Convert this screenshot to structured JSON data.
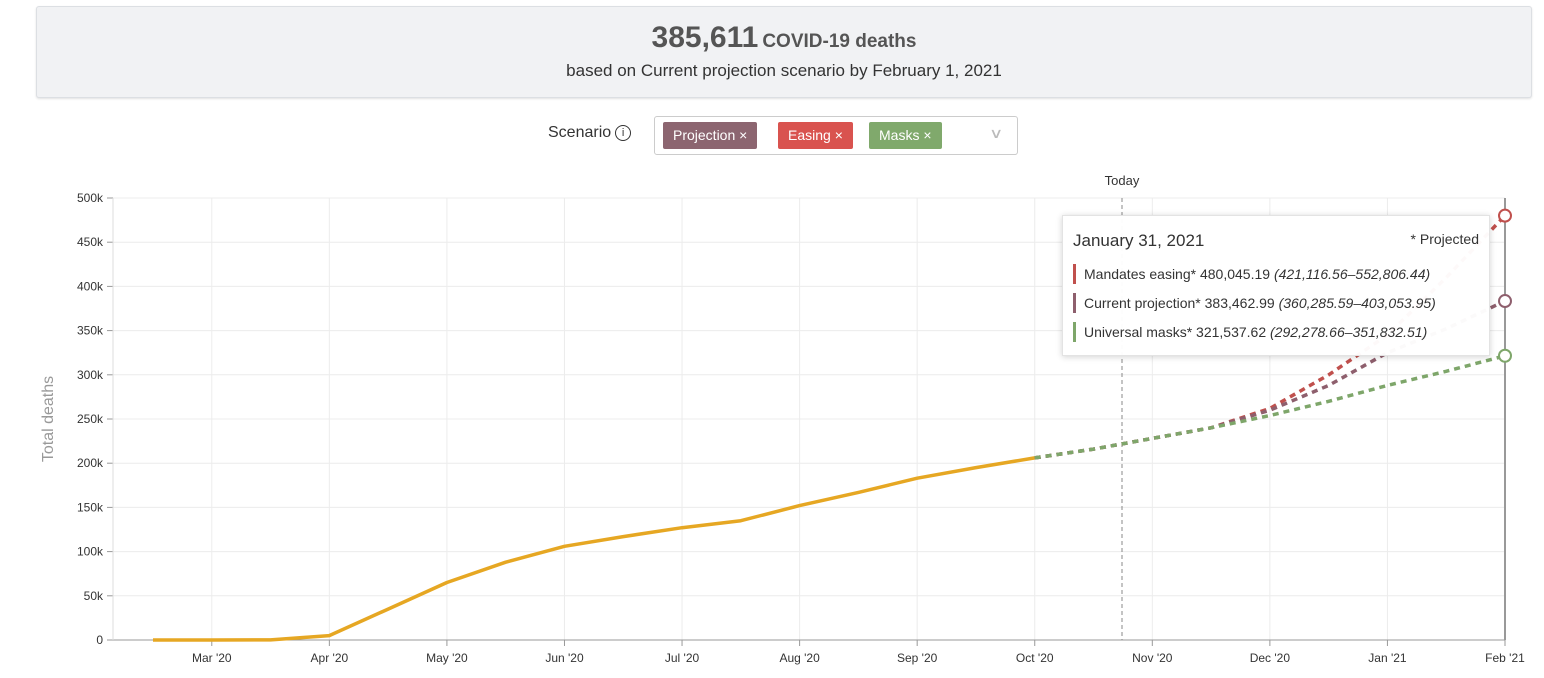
{
  "header": {
    "headline_number": "385,611",
    "headline_unit": "COVID-19 deaths",
    "subtitle": "based on Current projection scenario by February 1, 2021"
  },
  "scenario_selector": {
    "label": "Scenario",
    "tags": [
      {
        "text": "Projection",
        "color": "#8c6570"
      },
      {
        "text": "Easing",
        "color": "#d9534f"
      },
      {
        "text": "Masks",
        "color": "#80a96c"
      }
    ]
  },
  "chart_data": {
    "type": "line",
    "y_axis_label": "Total deaths",
    "annotation": "Today",
    "categories": [
      null,
      "Mar '20",
      null,
      "Apr '20",
      null,
      "May '20",
      null,
      "Jun '20",
      null,
      "Jul '20",
      null,
      "Aug '20",
      null,
      "Sep '20",
      null,
      "Oct '20",
      null,
      "Nov '20",
      null,
      "Dec '20",
      null,
      "Jan '21",
      null,
      "Feb '21"
    ],
    "ylim": [
      0,
      500000
    ],
    "yticks": [
      0,
      {
        "value": 50000,
        "label": "50k"
      },
      {
        "value": 100000,
        "label": "100k"
      },
      {
        "value": 150000,
        "label": "150k"
      },
      {
        "value": 200000,
        "label": "200k"
      },
      {
        "value": 250000,
        "label": "250k"
      },
      {
        "value": 300000,
        "label": "300k"
      },
      {
        "value": 350000,
        "label": "350k"
      },
      {
        "value": 400000,
        "label": "400k"
      },
      {
        "value": 450000,
        "label": "450k"
      },
      {
        "value": 500000,
        "label": "500k"
      }
    ],
    "grid": true,
    "series": [
      {
        "color": "#e6a723",
        "style": "solid",
        "values": [
          0,
          0,
          100,
          5000,
          35000,
          65000,
          88000,
          106000,
          117000,
          127000,
          135000,
          152000,
          167000,
          183000,
          195000,
          206000,
          null,
          null,
          null,
          null,
          null,
          null,
          null,
          null
        ]
      },
      {
        "name": "Mandates easing*",
        "color": "#c0504d",
        "style": "dashed",
        "values": [
          null,
          null,
          null,
          null,
          null,
          null,
          null,
          null,
          null,
          null,
          null,
          null,
          null,
          null,
          null,
          206000,
          216000,
          228000,
          240000,
          262000,
          300000,
          345000,
          410000,
          480045.19
        ]
      },
      {
        "name": "Current projection*",
        "color": "#8e5f6d",
        "style": "dashed",
        "values": [
          null,
          null,
          null,
          null,
          null,
          null,
          null,
          null,
          null,
          null,
          null,
          null,
          null,
          null,
          null,
          206000,
          216000,
          228000,
          240000,
          260000,
          288000,
          325000,
          352000,
          383462.99
        ]
      },
      {
        "name": "Universal masks*",
        "color": "#7ea66a",
        "style": "dashed",
        "values": [
          null,
          null,
          null,
          null,
          null,
          null,
          null,
          null,
          null,
          null,
          null,
          null,
          null,
          null,
          null,
          206000,
          216000,
          228000,
          240000,
          254000,
          270000,
          288000,
          304000,
          321537.62
        ]
      }
    ]
  },
  "tooltip": {
    "date": "January 31, 2021",
    "note": "* Projected",
    "rows": [
      {
        "value": "480,045.19",
        "range": "(421,116.56–552,806.44)"
      },
      {
        "value": "383,462.99",
        "range": "(360,285.59–403,053.95)"
      },
      {
        "value": "321,537.62",
        "range": "(292,278.66–351,832.51)"
      }
    ]
  }
}
